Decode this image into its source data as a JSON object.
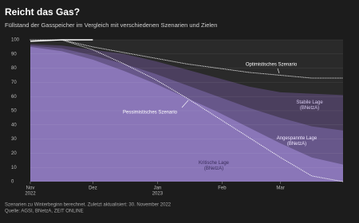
{
  "chart_data": {
    "type": "area",
    "title": "Reicht das Gas?",
    "subtitle": "Füllstand der Gasspeicher im Vergleich mit verschiedenen Szenarien und Zielen",
    "footnote": "Szenarien zu Winterbeginn berechnet. Zuletzt aktualisiert: 30. November 2022",
    "source": "Quelle: AGSI, BNetzA, ZEIT ONLINE",
    "x": [
      0,
      15,
      30,
      45,
      60,
      75,
      90,
      105,
      120,
      135,
      150
    ],
    "xlim": [
      0,
      150
    ],
    "xticks": [
      {
        "value": 0,
        "label": "Nov",
        "year": "2022"
      },
      {
        "value": 30,
        "label": "Dez"
      },
      {
        "value": 61,
        "label": "Jan",
        "year": "2023"
      },
      {
        "value": 92,
        "label": "Feb"
      },
      {
        "value": 120,
        "label": "Mar"
      }
    ],
    "ylim": [
      0,
      100
    ],
    "yticks": [
      0,
      10,
      20,
      30,
      40,
      50,
      60,
      70,
      80,
      90,
      100
    ],
    "grid": true,
    "series": [
      {
        "name": "Stabile Lage (BNetzA)",
        "kind": "area",
        "color": "#4b3f5e",
        "values": [
          97,
          96,
          93,
          90,
          85,
          79,
          73,
          67,
          63,
          62,
          61
        ]
      },
      {
        "name": "Angespannte Lage (BNetzA)",
        "kind": "area",
        "color": "#67578a",
        "values": [
          96,
          94,
          89,
          83,
          76,
          68,
          60,
          52,
          45,
          39,
          36
        ]
      },
      {
        "name": "Kritische Lage (BNetzA)",
        "kind": "area",
        "color": "#8a76b8",
        "values": [
          95,
          92,
          86,
          78,
          69,
          59,
          49,
          38,
          27,
          17,
          12
        ]
      },
      {
        "name": "Optimistisches Szenario",
        "kind": "dotted",
        "color": "#ffffff",
        "values": [
          100,
          100,
          95,
          91,
          87,
          83,
          80,
          77,
          75,
          73,
          73
        ]
      },
      {
        "name": "Pessimistisches Szenario",
        "kind": "dotted",
        "color": "#ffffff",
        "values": [
          100,
          100,
          93,
          83,
          72,
          59,
          45,
          31,
          17,
          4,
          0
        ]
      },
      {
        "kind": "solid",
        "color": "#ffffff",
        "values": [
          99,
          100,
          100,
          null,
          null,
          null,
          null,
          null,
          null,
          null,
          null
        ]
      }
    ]
  }
}
